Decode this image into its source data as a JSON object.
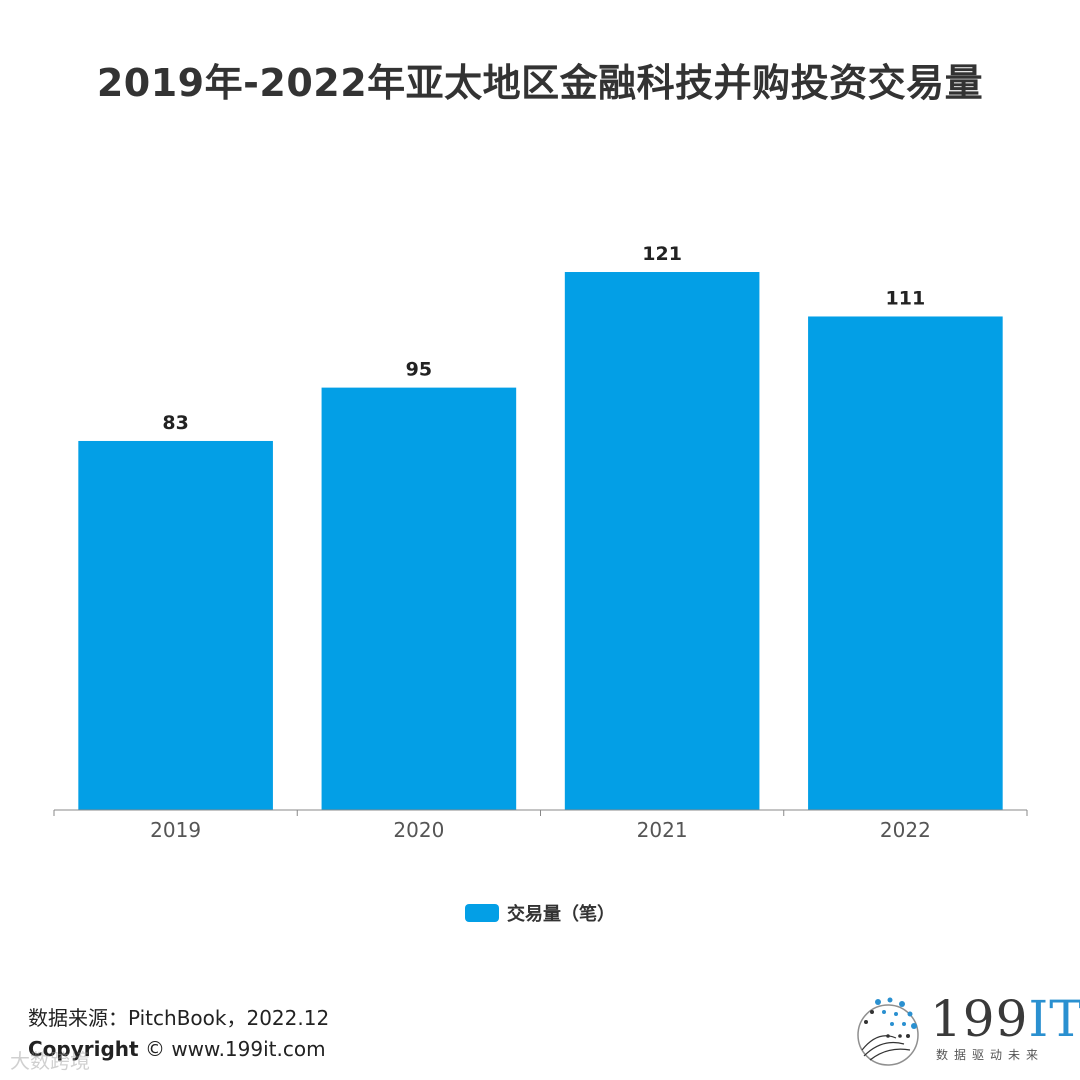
{
  "title": "2019年-2022年亚太地区金融科技并购投资交易量",
  "chart_data": {
    "type": "bar",
    "categories": [
      "2019",
      "2020",
      "2021",
      "2022"
    ],
    "series": [
      {
        "name": "交易量（笔）",
        "values": [
          83,
          95,
          121,
          111
        ]
      }
    ],
    "ylim": [
      0,
      130
    ],
    "grid": false,
    "legend_position": "bottom",
    "bar_color": "#039fe6"
  },
  "footer": {
    "source": "数据来源：PitchBook，2022.12",
    "copyright_label": "Copyright",
    "copyright_rest": "© www.199it.com",
    "watermark": "大数跨境"
  },
  "logo": {
    "text_main": "199",
    "text_accent": "IT",
    "subtitle": "数据驱动未来"
  }
}
